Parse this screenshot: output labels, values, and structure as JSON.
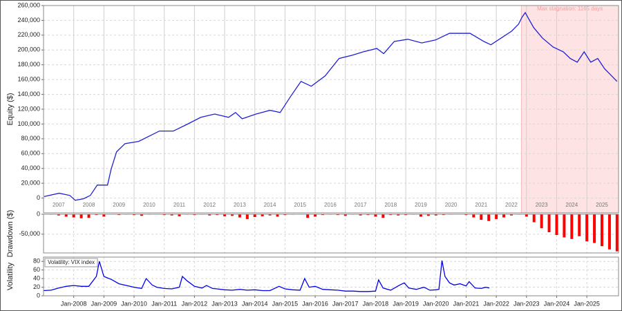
{
  "chart_data": [
    {
      "type": "line",
      "ylabel": "Equity ($)",
      "color": "#1f1fd6",
      "grid": true,
      "xlim": [
        2007,
        2026.05
      ],
      "ylim": [
        -20000,
        260000
      ],
      "yticks": [
        0,
        {
          "value": 20000,
          "label": "20,000"
        },
        {
          "value": 40000,
          "label": "40,000"
        },
        {
          "value": 60000,
          "label": "60,000"
        },
        {
          "value": 80000,
          "label": "80,000"
        },
        {
          "value": 100000,
          "label": "100,000"
        },
        {
          "value": 120000,
          "label": "120,000"
        },
        {
          "value": 140000,
          "label": "140,000"
        },
        {
          "value": 160000,
          "label": "160,000"
        },
        {
          "value": 180000,
          "label": "180,000"
        },
        {
          "value": 200000,
          "label": "200,000"
        },
        {
          "value": 220000,
          "label": "220,000"
        },
        {
          "value": 240000,
          "label": "240,000"
        },
        {
          "value": 260000,
          "label": "260,000"
        }
      ],
      "xticks": [
        {
          "value": 2007.5,
          "label": "2007"
        },
        {
          "value": 2008.5,
          "label": "2008"
        },
        {
          "value": 2009.5,
          "label": "2009"
        },
        {
          "value": 2010.5,
          "label": "2010"
        },
        {
          "value": 2011.5,
          "label": "2011"
        },
        {
          "value": 2012.5,
          "label": "2012"
        },
        {
          "value": 2013.5,
          "label": "2013"
        },
        {
          "value": 2014.5,
          "label": "2014"
        },
        {
          "value": 2015.5,
          "label": "2015"
        },
        {
          "value": 2016.5,
          "label": "2016"
        },
        {
          "value": 2017.5,
          "label": "2017"
        },
        {
          "value": 2018.5,
          "label": "2018"
        },
        {
          "value": 2019.5,
          "label": "2019"
        },
        {
          "value": 2020.5,
          "label": "2020"
        },
        {
          "value": 2021.5,
          "label": "2021"
        },
        {
          "value": 2022.5,
          "label": "2022"
        },
        {
          "value": 2023.5,
          "label": "2023"
        },
        {
          "value": 2024.5,
          "label": "2024"
        },
        {
          "value": 2025.5,
          "label": "2025"
        }
      ],
      "annotation": "Max stagnation: 1165 days",
      "stagnation_span": [
        2022.83,
        2026.05
      ],
      "stagnation_color": "#fde3e3",
      "x": [
        2007.02,
        2007.52,
        2007.87,
        2008.05,
        2008.32,
        2008.55,
        2008.78,
        2009.12,
        2009.24,
        2009.42,
        2009.7,
        2010.15,
        2010.84,
        2011.3,
        2011.75,
        2012.21,
        2012.67,
        2013.13,
        2013.36,
        2013.58,
        2014.04,
        2014.5,
        2014.84,
        2015.18,
        2015.53,
        2015.87,
        2016.33,
        2016.79,
        2017.24,
        2017.59,
        2018.04,
        2018.27,
        2018.62,
        2019.07,
        2019.53,
        2019.99,
        2020.45,
        2021.13,
        2021.59,
        2021.82,
        2022.16,
        2022.51,
        2022.74,
        2022.85,
        2022.96,
        2023.08,
        2023.24,
        2023.53,
        2023.88,
        2024.22,
        2024.45,
        2024.68,
        2024.91,
        2025.13,
        2025.36,
        2025.59,
        2025.82,
        2026.0
      ],
      "values": [
        2000,
        6500,
        3500,
        -3000,
        -1000,
        3500,
        17500,
        17500,
        39000,
        62500,
        73500,
        76500,
        90500,
        90500,
        99500,
        109000,
        113500,
        109000,
        115500,
        107000,
        113500,
        118500,
        115500,
        137000,
        157500,
        151000,
        165000,
        188500,
        193000,
        197500,
        202000,
        195000,
        211500,
        214500,
        209500,
        213500,
        222500,
        222500,
        211500,
        207000,
        216000,
        225500,
        235000,
        244000,
        250500,
        241500,
        230000,
        216000,
        204000,
        197500,
        188500,
        183500,
        197500,
        183500,
        188500,
        174500,
        165000,
        157500
      ]
    },
    {
      "type": "bar",
      "ylabel": "Drawdown ($)",
      "color": "#ff0000",
      "grid": true,
      "xlim": [
        2007,
        2026.05
      ],
      "ylim": [
        -97000,
        0
      ],
      "yticks": [
        0,
        {
          "value": -50000,
          "label": "-50,000"
        }
      ],
      "x": [
        2007.25,
        2007.5,
        2007.75,
        2008.0,
        2008.25,
        2008.5,
        2008.75,
        2009.0,
        2009.25,
        2009.5,
        2009.75,
        2010.0,
        2010.25,
        2010.5,
        2010.75,
        2011.0,
        2011.25,
        2011.5,
        2011.75,
        2012.0,
        2012.25,
        2012.5,
        2012.75,
        2013.0,
        2013.25,
        2013.5,
        2013.75,
        2014.0,
        2014.25,
        2014.5,
        2014.75,
        2015.0,
        2015.25,
        2015.5,
        2015.75,
        2016.0,
        2016.25,
        2016.5,
        2016.75,
        2017.0,
        2017.25,
        2017.5,
        2017.75,
        2018.0,
        2018.25,
        2018.5,
        2018.75,
        2019.0,
        2019.25,
        2019.5,
        2019.75,
        2020.0,
        2020.25,
        2020.5,
        2020.75,
        2021.0,
        2021.25,
        2021.5,
        2021.75,
        2022.0,
        2022.25,
        2022.5,
        2022.75,
        2023.0,
        2023.25,
        2023.5,
        2023.75,
        2024.0,
        2024.25,
        2024.5,
        2024.75,
        2025.0,
        2025.25,
        2025.5,
        2025.75,
        2026.0
      ],
      "values": [
        -1000,
        -3000,
        -6000,
        -8000,
        -10000,
        -9000,
        -2000,
        -6000,
        0,
        -2000,
        -1000,
        -2000,
        -4000,
        -1000,
        0,
        -2000,
        -3000,
        -5000,
        -1000,
        -2000,
        -1000,
        -3000,
        -2000,
        -5000,
        -4000,
        -8000,
        -12000,
        -7000,
        -5000,
        -3000,
        -6000,
        -2000,
        -1000,
        0,
        -9000,
        -6000,
        -2000,
        -1000,
        -2000,
        -4000,
        -1000,
        -3000,
        -2000,
        -6000,
        -9000,
        -2000,
        -3000,
        -2000,
        -1000,
        -6000,
        -4000,
        -3000,
        -2000,
        -1000,
        0,
        -2000,
        -8000,
        -14000,
        -17000,
        -12000,
        -8000,
        -3000,
        -1000,
        -6000,
        -20000,
        -35000,
        -45000,
        -52000,
        -58000,
        -62000,
        -55000,
        -68000,
        -72000,
        -80000,
        -88000,
        -93000
      ]
    },
    {
      "type": "line",
      "ylabel": "Volatility",
      "grid": true,
      "xlim": [
        2007,
        2026.05
      ],
      "ylim": [
        0,
        90
      ],
      "yticks": [
        0,
        20,
        40,
        60,
        80
      ],
      "xticks": [
        {
          "value": 2008,
          "label": "Jan-2008"
        },
        {
          "value": 2009,
          "label": "Jan-2009"
        },
        {
          "value": 2010,
          "label": "Jan-2010"
        },
        {
          "value": 2011,
          "label": "Jan-2011"
        },
        {
          "value": 2012,
          "label": "Jan-2012"
        },
        {
          "value": 2013,
          "label": "Jan-2013"
        },
        {
          "value": 2014,
          "label": "Jan-2014"
        },
        {
          "value": 2015,
          "label": "Jan-2015"
        },
        {
          "value": 2016,
          "label": "Jan-2016"
        },
        {
          "value": 2017,
          "label": "Jan-2017"
        },
        {
          "value": 2018,
          "label": "Jan-2018"
        },
        {
          "value": 2019,
          "label": "Jan-2019"
        },
        {
          "value": 2020,
          "label": "Jan-2020"
        },
        {
          "value": 2021,
          "label": "Jan-2021"
        },
        {
          "value": 2022,
          "label": "Jan-2022"
        },
        {
          "value": 2023,
          "label": "Jan-2023"
        },
        {
          "value": 2024,
          "label": "Jan-2024"
        },
        {
          "value": 2025,
          "label": "Jan-2025"
        }
      ],
      "x": [
        2007.0,
        2007.25,
        2007.5,
        2007.75,
        2008.0,
        2008.25,
        2008.5,
        2008.75,
        2008.85,
        2009.0,
        2009.25,
        2009.5,
        2009.75,
        2010.0,
        2010.25,
        2010.4,
        2010.6,
        2010.75,
        2011.0,
        2011.25,
        2011.5,
        2011.6,
        2011.75,
        2012.0,
        2012.25,
        2012.4,
        2012.6,
        2012.75,
        2013.0,
        2013.25,
        2013.5,
        2013.75,
        2014.0,
        2014.25,
        2014.5,
        2014.8,
        2015.0,
        2015.25,
        2015.5,
        2015.65,
        2015.8,
        2016.0,
        2016.25,
        2016.5,
        2016.75,
        2017.0,
        2017.25,
        2017.5,
        2017.75,
        2018.0,
        2018.1,
        2018.25,
        2018.5,
        2018.8,
        2018.95,
        2019.1,
        2019.35,
        2019.6,
        2019.8,
        2020.0,
        2020.1,
        2020.2,
        2020.3,
        2020.45,
        2020.6,
        2020.8,
        2021.0,
        2021.1,
        2021.3,
        2021.5,
        2021.65,
        2021.77
      ],
      "series": [
        {
          "name": "Volatility: VIX index",
          "color": "#0000ee",
          "values": [
            12,
            13,
            18,
            22,
            24,
            22,
            22,
            45,
            80,
            45,
            38,
            28,
            24,
            20,
            17,
            40,
            25,
            20,
            17,
            16,
            20,
            45,
            35,
            22,
            18,
            24,
            17,
            16,
            14,
            13,
            15,
            13,
            14,
            12,
            12,
            22,
            16,
            14,
            13,
            40,
            20,
            22,
            15,
            14,
            13,
            11,
            11,
            10,
            10,
            11,
            37,
            18,
            13,
            25,
            30,
            18,
            15,
            20,
            13,
            14,
            15,
            82,
            45,
            30,
            25,
            28,
            23,
            33,
            18,
            17,
            20,
            18
          ]
        }
      ]
    }
  ]
}
